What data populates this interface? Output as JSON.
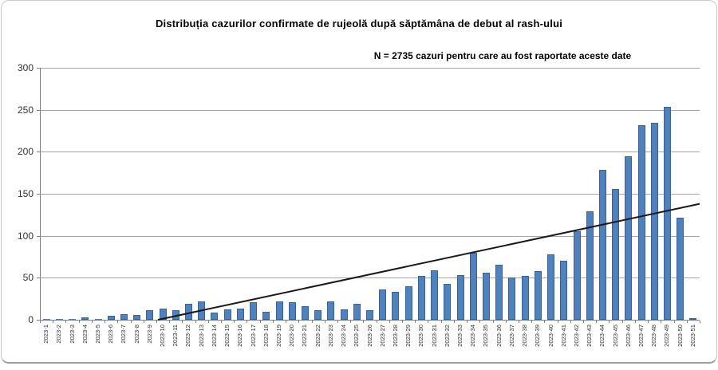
{
  "header": {
    "title": "Distribuția cazurilor confirmate de rujeolă după săptămâna de debut al rash-ului",
    "subtitle": "N = 2735 cazuri pentru care au fost raportate aceste date"
  },
  "chart_data": {
    "type": "bar",
    "title": "Distribuția cazurilor confirmate de rujeolă după săptămâna de debut al rash-ului",
    "subtitle": "N = 2735 cazuri pentru care au fost raportate aceste date",
    "xlabel": "",
    "ylabel": "",
    "categories": [
      "2023-1",
      "2023-2",
      "2023-3",
      "2023-4",
      "2023-5",
      "2023-6",
      "2023-7",
      "2023-8",
      "2023-9",
      "2023-10",
      "2023-11",
      "2023-12",
      "2023-13",
      "2023-14",
      "2023-15",
      "2023-16",
      "2023-17",
      "2023-18",
      "2023-19",
      "2023-20",
      "2023-21",
      "2023-22",
      "2023-23",
      "2023-24",
      "2023-25",
      "2023-26",
      "2023-27",
      "2023-28",
      "2023-29",
      "2023-30",
      "2023-31",
      "2023-32",
      "2023-33",
      "2023-34",
      "2023-35",
      "2023-36",
      "2023-37",
      "2023-38",
      "2023-39",
      "2023-40",
      "2023-41",
      "2023-42",
      "2023-43",
      "2023-44",
      "2023-45",
      "2023-46",
      "2023-47",
      "2023-48",
      "2023-49",
      "2023-50",
      "2023-51"
    ],
    "values": [
      1,
      1,
      1,
      3,
      1,
      5,
      7,
      6,
      11,
      13,
      11,
      19,
      22,
      9,
      12,
      13,
      21,
      10,
      22,
      21,
      16,
      11,
      22,
      12,
      19,
      11,
      36,
      33,
      40,
      52,
      59,
      43,
      53,
      80,
      56,
      66,
      50,
      52,
      58,
      78,
      70,
      105,
      129,
      179,
      156,
      195,
      232,
      235,
      254,
      122,
      2
    ],
    "total_n": 2735,
    "ylim": [
      0,
      300
    ],
    "yticks": [
      0,
      50,
      100,
      150,
      200,
      250,
      300
    ],
    "grid": true,
    "legend": "none",
    "bar_orientation": "vertical",
    "colors": {
      "bar_fill": "#4f81bd",
      "bar_border": "#3a6296",
      "gridline": "#a6a6a6",
      "axis": "#808080",
      "trendline": "#1a1a1a"
    },
    "trendline": {
      "shape": "linear",
      "x1_slot": 9.13,
      "y1": 0,
      "x2_slot": 51,
      "y2": 138
    }
  }
}
